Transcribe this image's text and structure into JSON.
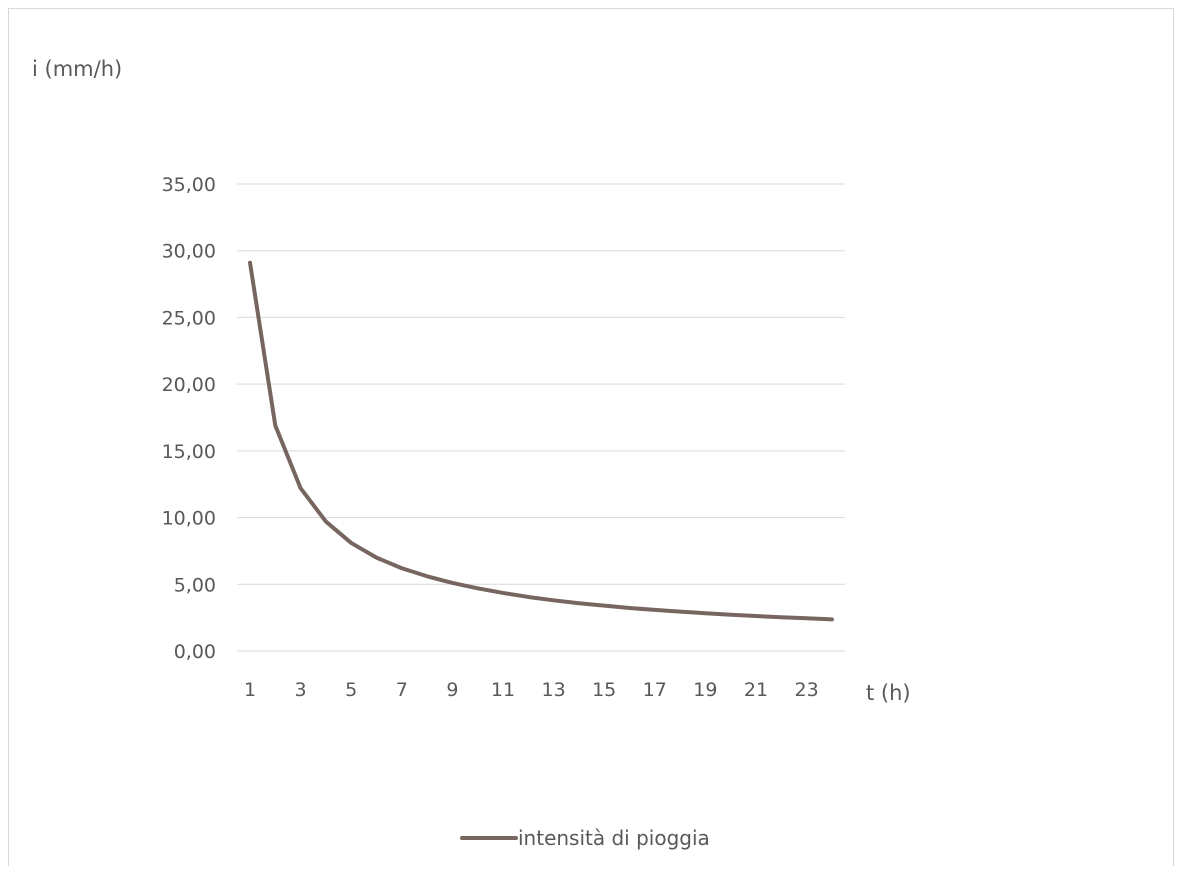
{
  "chart_data": {
    "type": "line",
    "title": "",
    "xlabel": "t (h)",
    "ylabel": "i (mm/h)",
    "x": [
      1,
      2,
      3,
      4,
      5,
      6,
      7,
      8,
      9,
      10,
      11,
      12,
      13,
      14,
      15,
      16,
      17,
      18,
      19,
      20,
      21,
      22,
      23,
      24
    ],
    "x_tick_labels": [
      "1",
      "3",
      "5",
      "7",
      "9",
      "11",
      "13",
      "15",
      "17",
      "19",
      "21",
      "23"
    ],
    "y_tick_labels": [
      "0,00",
      "5,00",
      "10,00",
      "15,00",
      "20,00",
      "25,00",
      "30,00",
      "35,00"
    ],
    "ylim": [
      0,
      35
    ],
    "grid": true,
    "legend_position": "bottom",
    "series": [
      {
        "name": "intensità di pioggia",
        "color": "#76665f",
        "values": [
          29.1,
          16.9,
          12.2,
          9.7,
          8.1,
          7.0,
          6.2,
          5.6,
          5.1,
          4.7,
          4.35,
          4.05,
          3.8,
          3.58,
          3.4,
          3.22,
          3.08,
          2.95,
          2.83,
          2.72,
          2.62,
          2.53,
          2.45,
          2.37
        ]
      }
    ]
  }
}
